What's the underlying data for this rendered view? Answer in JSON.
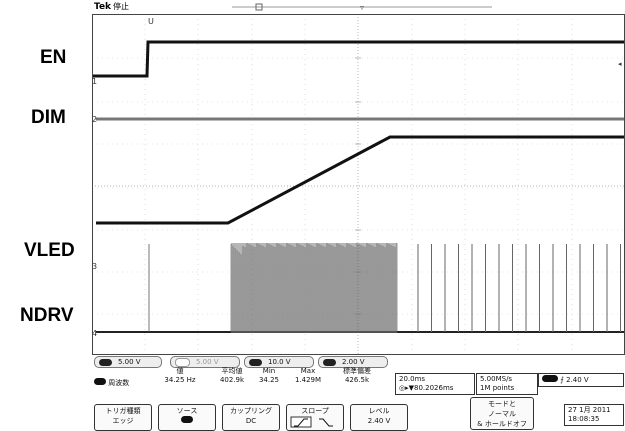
{
  "side_labels": {
    "en": "EN",
    "dim": "DIM",
    "vled": "VLED",
    "ndrv": "NDRV"
  },
  "header": {
    "brand": "Tek",
    "state": "停止"
  },
  "markers": {
    "trigger_pos": "U",
    "ch1": "1",
    "ch2": "2",
    "ch3": "3",
    "ch4": "4"
  },
  "channels": [
    {
      "num": "1",
      "scale": "5.00 V"
    },
    {
      "num": "2",
      "scale": "5.00 V"
    },
    {
      "num": "3",
      "scale": "10.0 V"
    },
    {
      "num": "4",
      "scale": "2.00 V"
    }
  ],
  "measurement": {
    "channel": "4",
    "name": "周波数",
    "headers": {
      "value": "値",
      "mean": "平均値",
      "min": "Min",
      "max": "Max",
      "std": "標準偏差"
    },
    "values": {
      "value": "34.25 Hz",
      "mean": "402.9k",
      "min": "34.25",
      "max": "1.429M",
      "std": "426.5k"
    }
  },
  "timebase": {
    "scale": "20.0ms",
    "delay": "◎▸▼80.2026ms"
  },
  "acquisition": {
    "rate": "5.00MS/s",
    "points": "1M points"
  },
  "trigger": {
    "channel": "4",
    "slope": "⨍",
    "level": "2.40 V"
  },
  "buttons": {
    "trig_type": {
      "l1": "トリガ種類",
      "l2": "エッジ"
    },
    "source": {
      "l1": "ソース"
    },
    "coupling": {
      "l1": "カップリング",
      "l2": "DC"
    },
    "slope": {
      "l1": "スロープ"
    },
    "level": {
      "l1": "レベル",
      "l2": "2.40 V"
    },
    "mode": {
      "l1": "モードと",
      "l2": "ノーマル",
      "l3": "& ホールドオフ"
    }
  },
  "datetime": {
    "date": "27 1月 2011",
    "time": "18:08:35"
  },
  "colors": {
    "trace": "#111111",
    "grid": "#bfbfbf",
    "screen": "#ffffff"
  }
}
